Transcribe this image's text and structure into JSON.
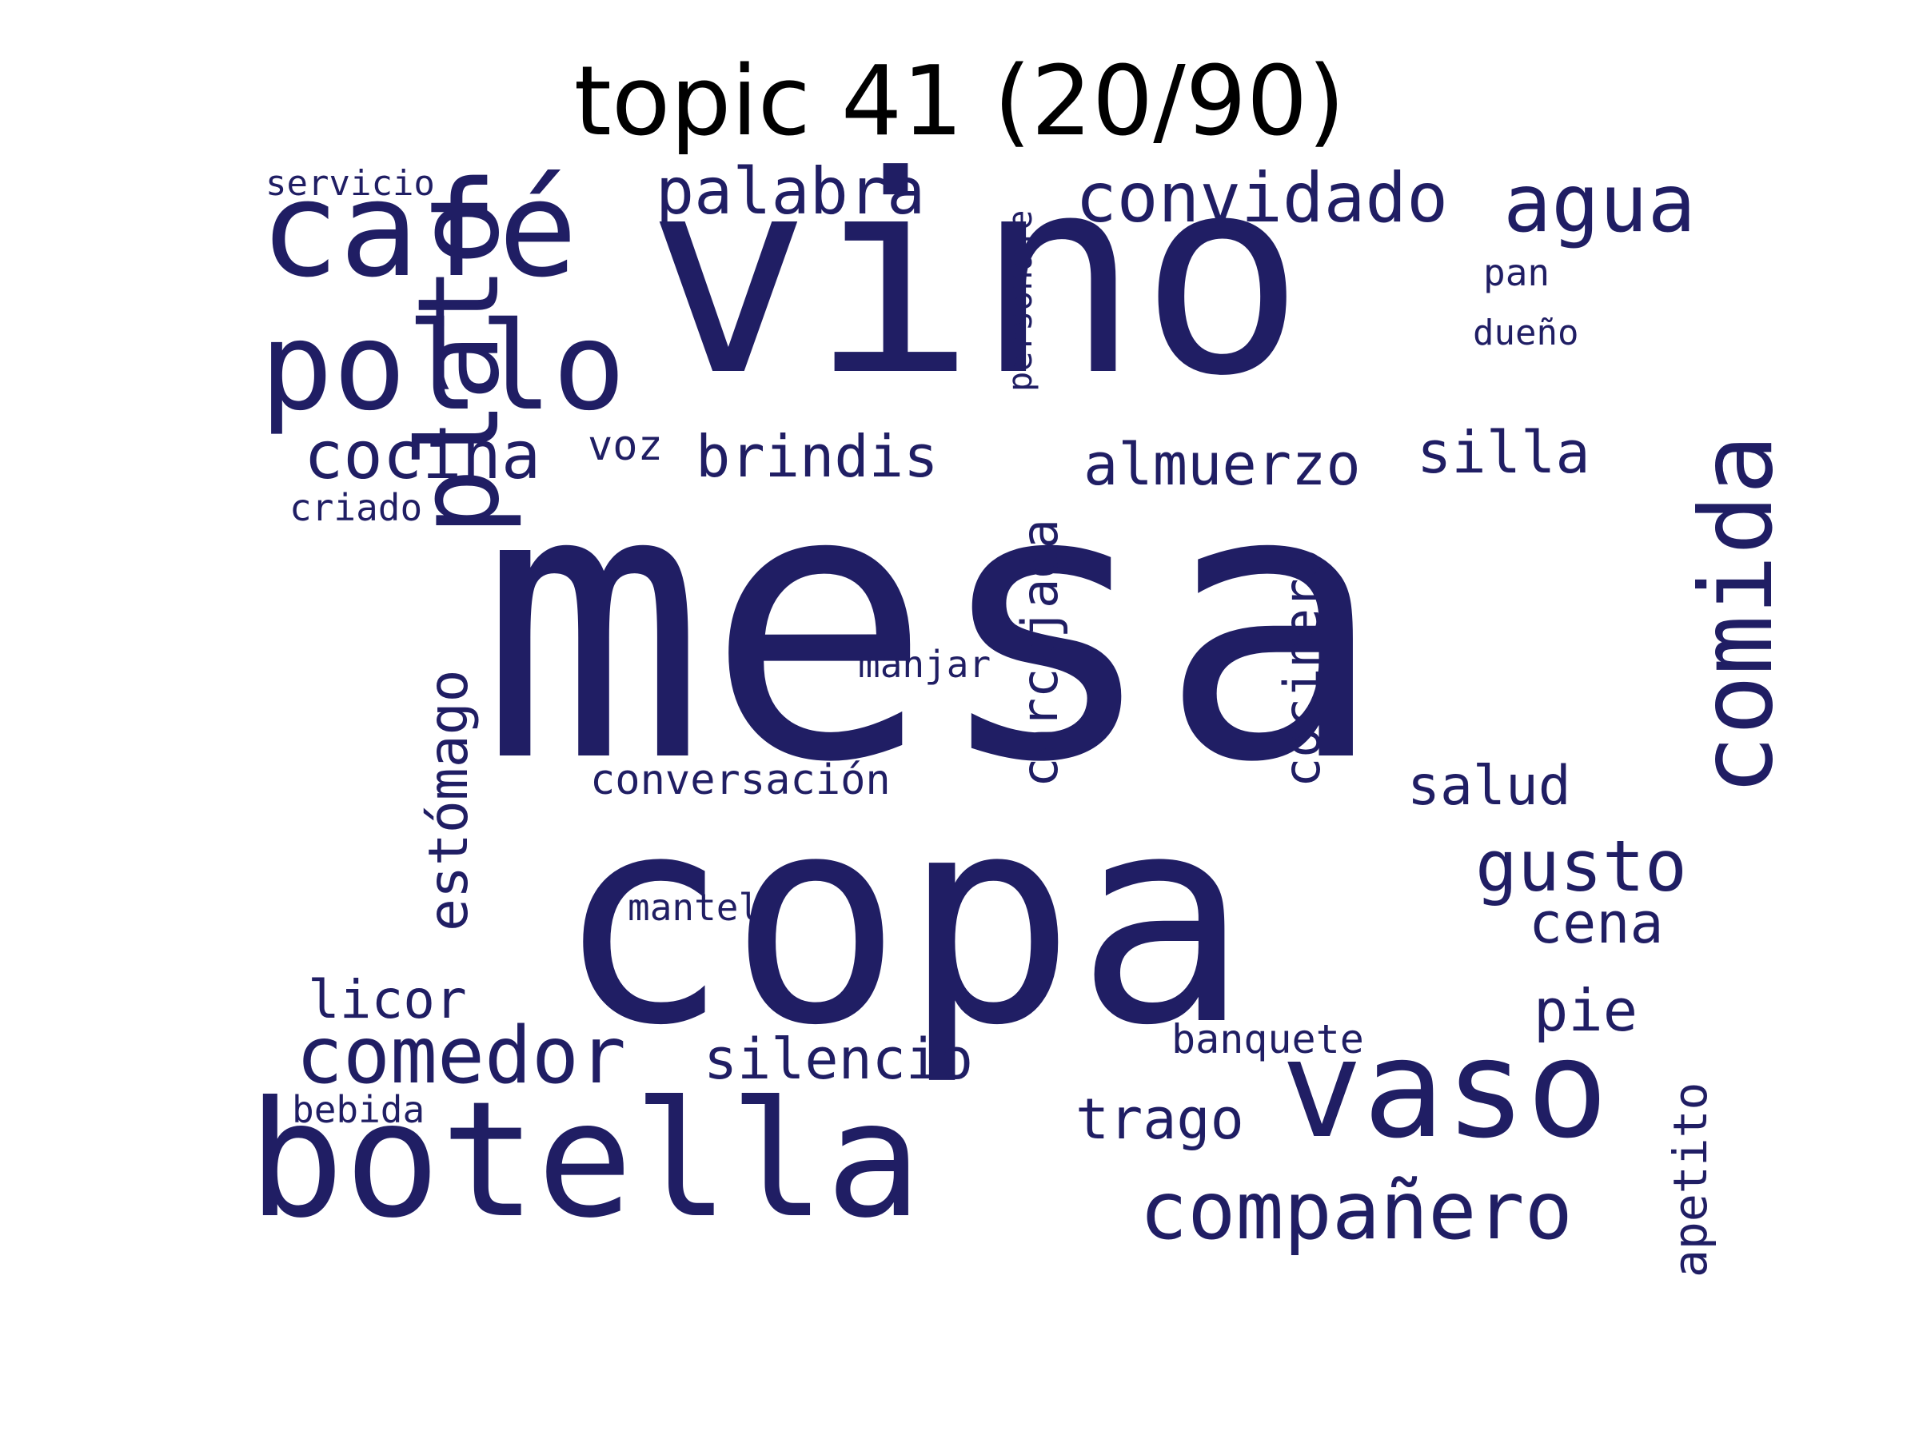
{
  "title": "topic 41 (20/90)",
  "color": "#201e64",
  "words": [
    {
      "id": "mesa",
      "text": "mesa"
    },
    {
      "id": "copa",
      "text": "copa"
    },
    {
      "id": "vino",
      "text": "vino"
    },
    {
      "id": "botella",
      "text": "botella"
    },
    {
      "id": "vaso",
      "text": "vaso"
    },
    {
      "id": "cafe",
      "text": "café"
    },
    {
      "id": "pollo",
      "text": "pollo"
    },
    {
      "id": "plato",
      "text": "plato"
    },
    {
      "id": "comida",
      "text": "comida"
    },
    {
      "id": "convidado",
      "text": "convidado"
    },
    {
      "id": "agua",
      "text": "agua"
    },
    {
      "id": "palabra",
      "text": "palabra"
    },
    {
      "id": "comedor",
      "text": "comedor"
    },
    {
      "id": "companero",
      "text": "compañero"
    },
    {
      "id": "gusto",
      "text": "gusto"
    },
    {
      "id": "cocina",
      "text": "cocina"
    },
    {
      "id": "brindis",
      "text": "brindis"
    },
    {
      "id": "almuerzo",
      "text": "almuerzo"
    },
    {
      "id": "silla",
      "text": "silla"
    },
    {
      "id": "carcajada",
      "text": "carcajada"
    },
    {
      "id": "estomago",
      "text": "estómago"
    },
    {
      "id": "cocinero",
      "text": "cocinero"
    },
    {
      "id": "silencio",
      "text": "silencio"
    },
    {
      "id": "trago",
      "text": "trago"
    },
    {
      "id": "cena",
      "text": "cena"
    },
    {
      "id": "pie",
      "text": "pie"
    },
    {
      "id": "salud",
      "text": "salud"
    },
    {
      "id": "licor",
      "text": "licor"
    },
    {
      "id": "apetito",
      "text": "apetito"
    },
    {
      "id": "conversacion",
      "text": "conversación"
    },
    {
      "id": "banquete",
      "text": "banquete"
    },
    {
      "id": "personaje",
      "text": "personaje"
    },
    {
      "id": "manjar",
      "text": "manjar"
    },
    {
      "id": "mantel",
      "text": "mantel"
    },
    {
      "id": "servicio",
      "text": "servicio"
    },
    {
      "id": "pan",
      "text": "pan"
    },
    {
      "id": "dueno",
      "text": "dueño"
    },
    {
      "id": "voz",
      "text": "voz"
    },
    {
      "id": "criado",
      "text": "criado"
    },
    {
      "id": "bebida",
      "text": "bebida"
    }
  ]
}
